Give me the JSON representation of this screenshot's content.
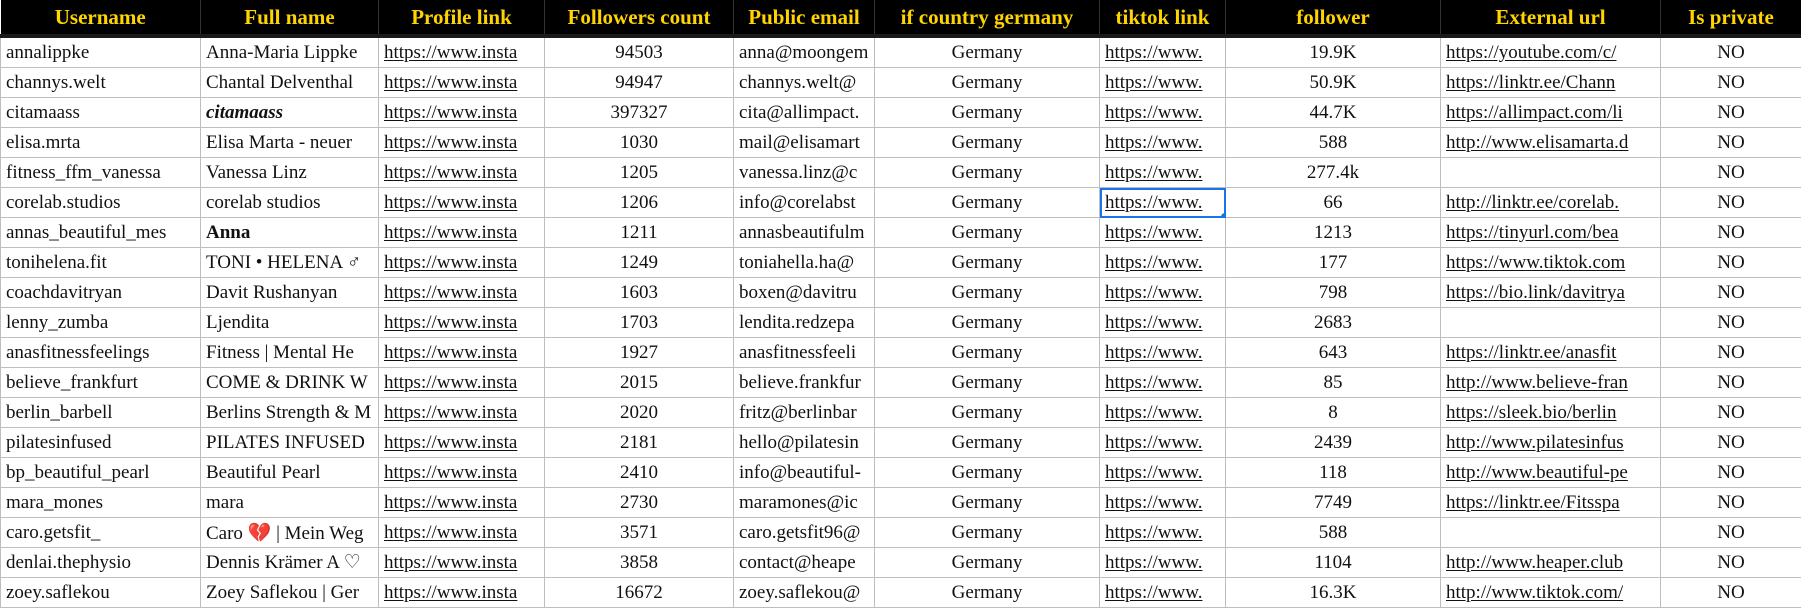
{
  "sheet": {
    "columns": [
      "Username",
      "Full name",
      "Profile link",
      "Followers count",
      "Public email",
      "if country germany",
      "tiktok link",
      "follower",
      "External url",
      "Is private"
    ],
    "rows": [
      [
        "annalippke",
        "Anna-Maria Lippke",
        "https://www.insta",
        "94503",
        "anna@moongem",
        "Germany",
        "https://www.",
        "19.9K",
        "https://youtube.com/c/",
        "NO"
      ],
      [
        "channys.welt",
        "Chantal Delventhal",
        "https://www.insta",
        "94947",
        "channys.welt@",
        "Germany",
        "https://www.",
        "50.9K",
        "https://linktr.ee/Chann",
        "NO"
      ],
      [
        "citamaass",
        "citamaass",
        "https://www.insta",
        "397327",
        "cita@allimpact.",
        "Germany",
        "https://www.",
        "44.7K",
        "https://allimpact.com/li",
        "NO"
      ],
      [
        "elisa.mrta",
        "Elisa Marta - neuer",
        "https://www.insta",
        "1030",
        "mail@elisamart",
        "Germany",
        "https://www.",
        "588",
        "http://www.elisamarta.d",
        "NO"
      ],
      [
        "fitness_ffm_vanessa",
        "Vanessa Linz",
        "https://www.insta",
        "1205",
        "vanessa.linz@c",
        "Germany",
        "https://www.",
        "277.4k",
        "",
        "NO"
      ],
      [
        "corelab.studios",
        "corelab studios",
        "https://www.insta",
        "1206",
        "info@corelabst",
        "Germany",
        "https://www.",
        "66",
        "http://linktr.ee/corelab.",
        "NO"
      ],
      [
        "annas_beautiful_mes",
        "Anna",
        "https://www.insta",
        "1211",
        "annasbeautifulm",
        "Germany",
        "https://www.",
        "1213",
        "https://tinyurl.com/bea",
        "NO"
      ],
      [
        "tonihelena.fit",
        "TONI • HELENA ♂",
        "https://www.insta",
        "1249",
        "toniahella.ha@",
        "Germany",
        "https://www.",
        "177",
        "https://www.tiktok.com",
        "NO"
      ],
      [
        "coachdavitryan",
        "Davit Rushanyan",
        "https://www.insta",
        "1603",
        "boxen@davitru",
        "Germany",
        "https://www.",
        "798",
        "https://bio.link/davitrya",
        "NO"
      ],
      [
        "lenny_zumba",
        "Ljendita",
        "https://www.insta",
        "1703",
        "lendita.redzepa",
        "Germany",
        "https://www.",
        "2683",
        "",
        "NO"
      ],
      [
        "anasfitnessfeelings",
        "Fitness | Mental He",
        "https://www.insta",
        "1927",
        "anasfitnessfeeli",
        "Germany",
        "https://www.",
        "643",
        "https://linktr.ee/anasfit",
        "NO"
      ],
      [
        "believe_frankfurt",
        "COME & DRINK W",
        "https://www.insta",
        "2015",
        "believe.frankfur",
        "Germany",
        "https://www.",
        "85",
        "http://www.believe-fran",
        "NO"
      ],
      [
        "berlin_barbell",
        "Berlins Strength & M",
        "https://www.insta",
        "2020",
        "fritz@berlinbar",
        "Germany",
        "https://www.",
        "8",
        "https://sleek.bio/berlin",
        "NO"
      ],
      [
        "pilatesinfused",
        "PILATES INFUSED",
        "https://www.insta",
        "2181",
        "hello@pilatesin",
        "Germany",
        "https://www.",
        "2439",
        "http://www.pilatesinfus",
        "NO"
      ],
      [
        "bp_beautiful_pearl",
        "Beautiful Pearl",
        "https://www.insta",
        "2410",
        "info@beautiful-",
        "Germany",
        "https://www.",
        "118",
        "http://www.beautiful-pe",
        "NO"
      ],
      [
        "mara_mones",
        "mara",
        "https://www.insta",
        "2730",
        "maramones@ic",
        "Germany",
        "https://www.",
        "7749",
        "https://linktr.ee/Fitsspa",
        "NO"
      ],
      [
        "caro.getsfit_",
        "Caro 💔 | Mein Weg",
        "https://www.insta",
        "3571",
        "caro.getsfit96@",
        "Germany",
        "https://www.",
        "588",
        "",
        "NO"
      ],
      [
        "denlai.thephysio",
        "Dennis Krämer A ♡",
        "https://www.insta",
        "3858",
        "contact@heape",
        "Germany",
        "https://www.",
        "1104",
        "http://www.heaper.club",
        "NO"
      ],
      [
        "zoey.saflekou",
        "Zoey Saflekou | Ger",
        "https://www.insta",
        "16672",
        "zoey.saflekou@",
        "Germany",
        "https://www.",
        "16.3K",
        "http://www.tiktok.com/",
        "NO"
      ]
    ],
    "selected_cell": {
      "row": 5,
      "col": 6
    },
    "colors": {
      "header_bg": "#000000",
      "header_text": "#ffd400",
      "selection": "#1a73e8"
    }
  }
}
